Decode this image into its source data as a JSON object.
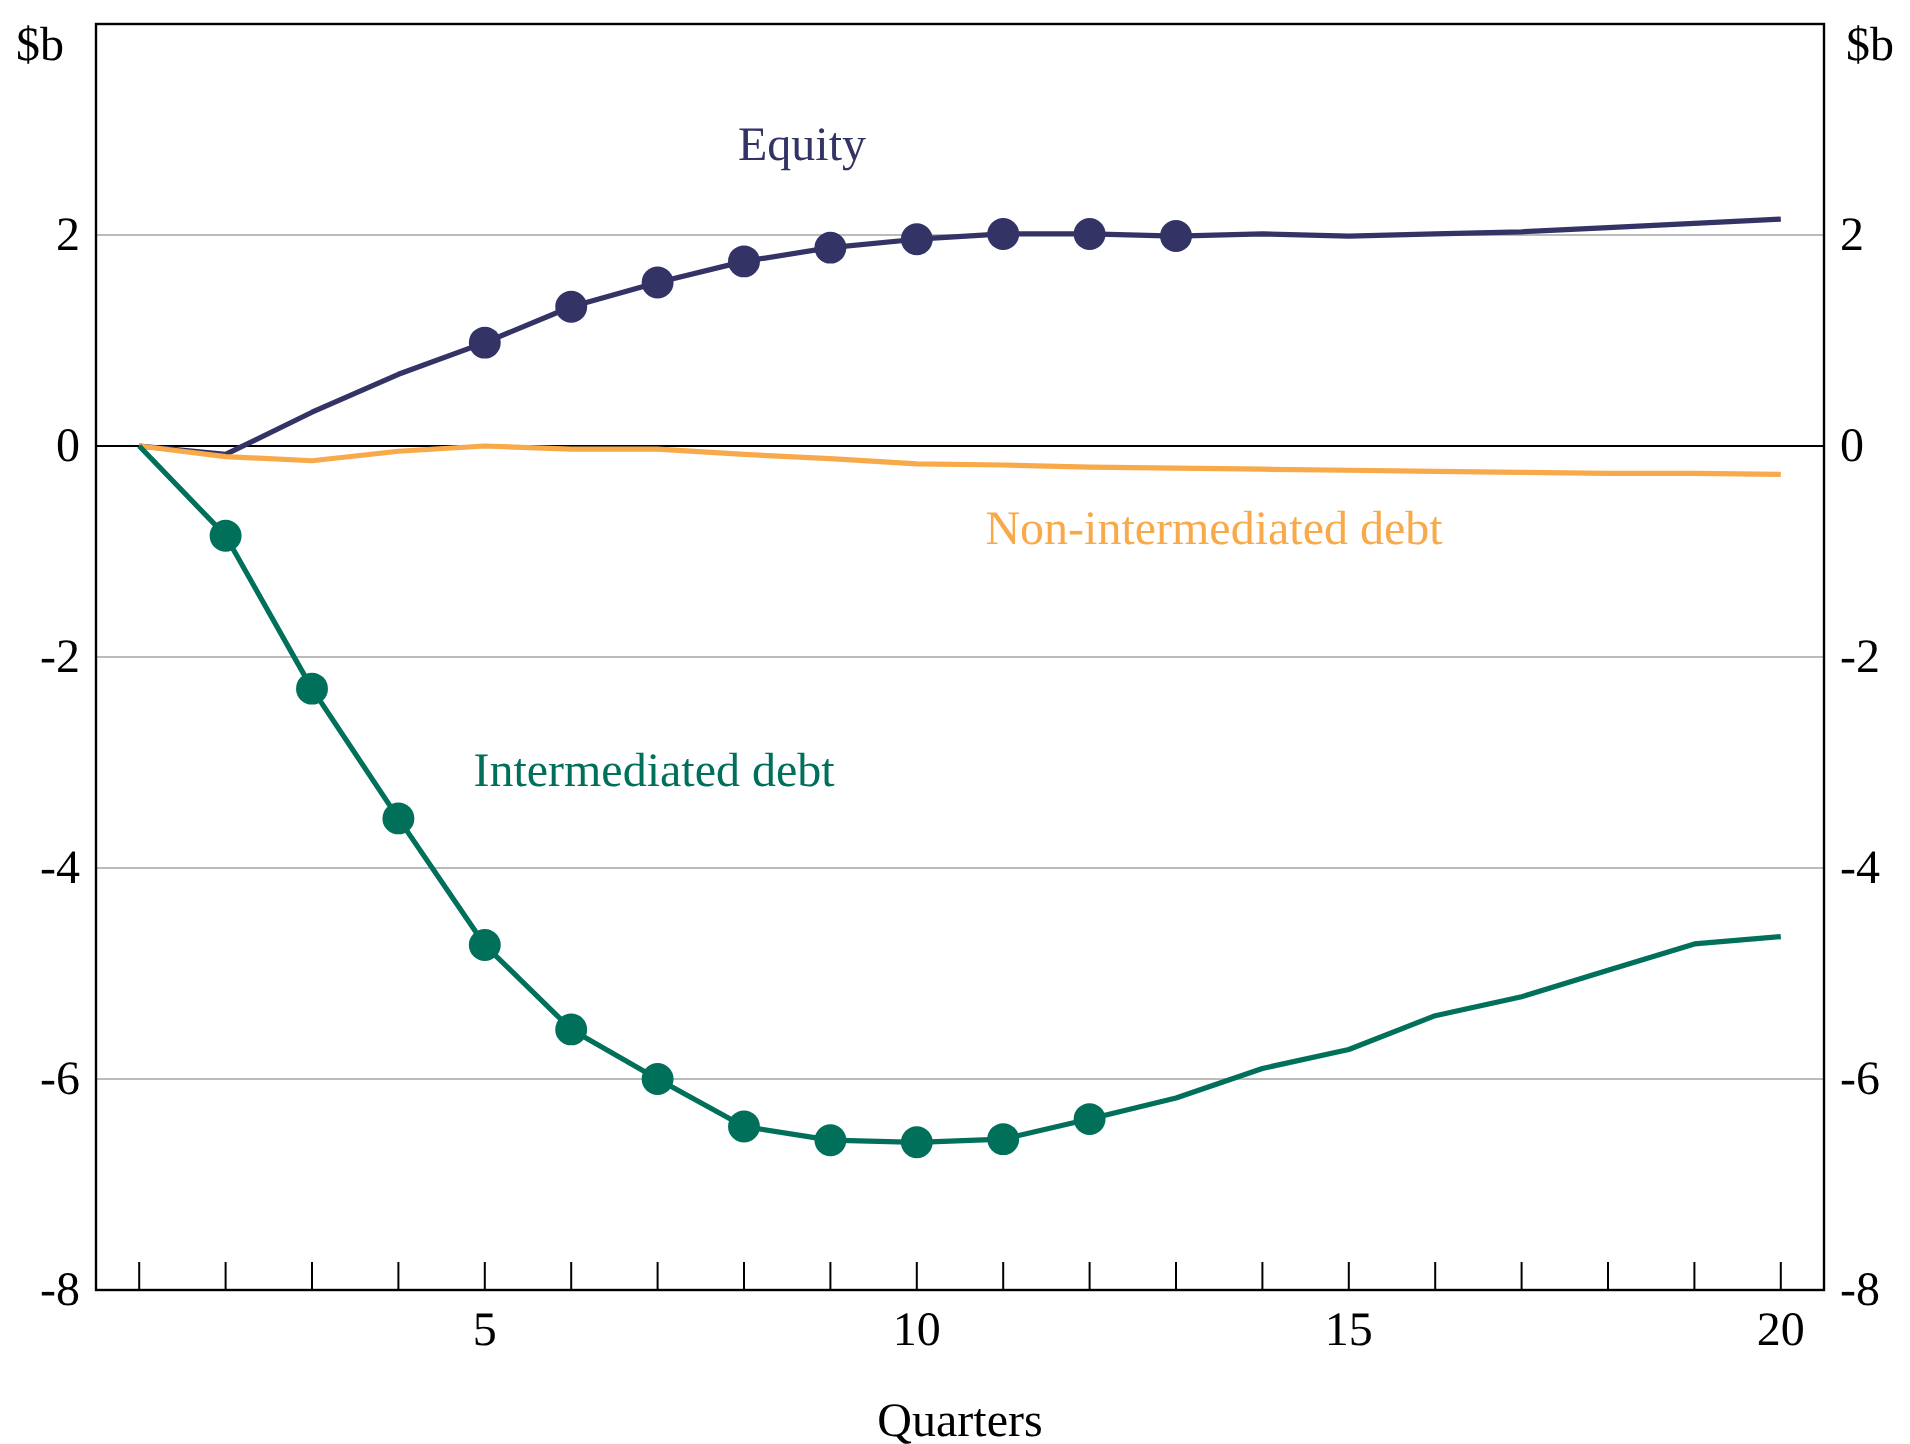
{
  "chart_data": {
    "type": "line",
    "xlabel": "Quarters",
    "ylabel": "$b",
    "y2label": "$b",
    "x": [
      1,
      2,
      3,
      4,
      5,
      6,
      7,
      8,
      9,
      10,
      11,
      12,
      13,
      14,
      15,
      16,
      17,
      18,
      19,
      20
    ],
    "xlim": [
      0.5,
      20.5
    ],
    "xticks": [
      {
        "value": 1,
        "label": null
      },
      {
        "value": 2,
        "label": null
      },
      {
        "value": 3,
        "label": null
      },
      {
        "value": 4,
        "label": null
      },
      5,
      {
        "value": 6,
        "label": null
      },
      {
        "value": 7,
        "label": null
      },
      {
        "value": 8,
        "label": null
      },
      {
        "value": 9,
        "label": null
      },
      10,
      {
        "value": 11,
        "label": null
      },
      {
        "value": 12,
        "label": null
      },
      {
        "value": 13,
        "label": null
      },
      {
        "value": 14,
        "label": null
      },
      15,
      {
        "value": 16,
        "label": null
      },
      {
        "value": 17,
        "label": null
      },
      {
        "value": 18,
        "label": null
      },
      {
        "value": 19,
        "label": null
      },
      20
    ],
    "ylim": [
      -8,
      4
    ],
    "yticks": [
      -8,
      -6,
      -4,
      -2,
      0,
      2
    ],
    "y2lim": [
      -8,
      4
    ],
    "y2ticks": [
      -8,
      -6,
      -4,
      -2,
      0,
      2
    ],
    "grid": "y",
    "series": [
      {
        "name": "Equity",
        "color": "#333366",
        "values": [
          0,
          -0.08,
          0.32,
          0.68,
          0.98,
          1.32,
          1.55,
          1.75,
          1.88,
          1.96,
          2.01,
          2.01,
          1.99,
          2.01,
          1.99,
          2.01,
          2.03,
          2.07,
          2.11,
          2.15
        ]
      },
      {
        "name": "Non-intermediated debt",
        "color": "#f8a94a",
        "values": [
          0,
          -0.1,
          -0.14,
          -0.05,
          0,
          -0.03,
          -0.03,
          -0.08,
          -0.12,
          -0.17,
          -0.18,
          -0.2,
          -0.21,
          -0.22,
          -0.23,
          -0.24,
          -0.25,
          -0.26,
          -0.26,
          -0.27
        ]
      },
      {
        "name": "Intermediated debt",
        "color": "#00705a",
        "values": [
          0,
          -0.85,
          -2.3,
          -3.53,
          -4.73,
          -5.53,
          -6.0,
          -6.45,
          -6.58,
          -6.6,
          -6.57,
          -6.38,
          -6.18,
          -5.9,
          -5.72,
          -5.4,
          -5.22,
          -4.97,
          -4.72,
          -4.65
        ]
      },
      {
        "type": "scatter",
        "marker": "circle",
        "color": "#333366",
        "x": [
          5,
          6,
          7,
          8,
          9,
          10,
          11,
          12,
          13
        ],
        "values": [
          0.98,
          1.32,
          1.55,
          1.75,
          1.88,
          1.96,
          2.01,
          2.01,
          1.99
        ]
      },
      {
        "type": "scatter",
        "marker": "circle",
        "color": "#00705a",
        "x": [
          2,
          3,
          4,
          5,
          6,
          7,
          8,
          9,
          10,
          11,
          12
        ],
        "values": [
          -0.85,
          -2.3,
          -3.53,
          -4.73,
          -5.53,
          -6.0,
          -6.45,
          -6.58,
          -6.6,
          -6.57,
          -6.38
        ]
      }
    ]
  }
}
